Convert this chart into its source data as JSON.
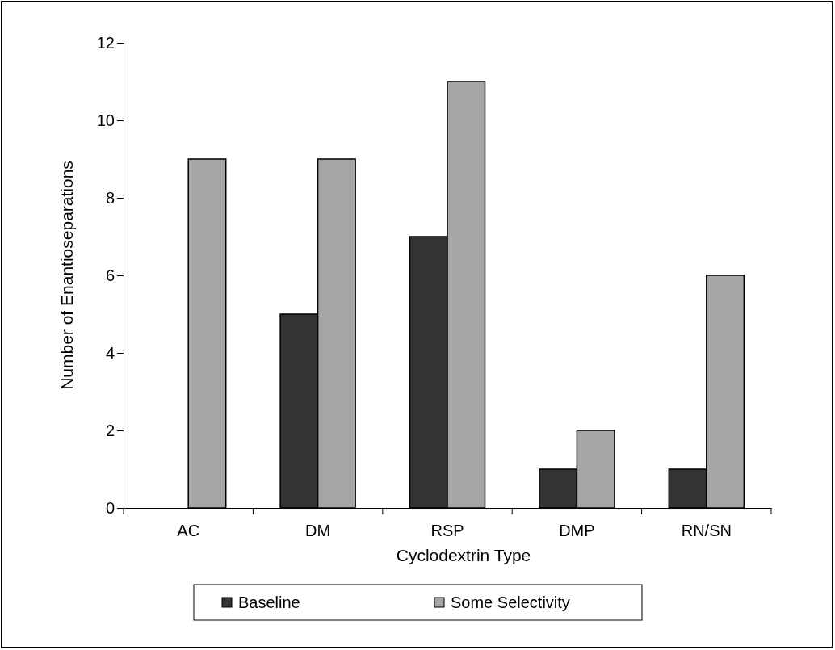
{
  "chart_data": {
    "type": "bar",
    "xlabel": "Cyclodextrin Type",
    "ylabel": "Number of Enantioseparations",
    "categories": [
      "AC",
      "DM",
      "RSP",
      "DMP",
      "RN/SN"
    ],
    "series": [
      {
        "name": "Baseline",
        "color": "#333333",
        "values": [
          0,
          5,
          7,
          1,
          1
        ]
      },
      {
        "name": "Some Selectivity",
        "color": "#a6a6a6",
        "values": [
          9,
          9,
          11,
          2,
          6
        ]
      }
    ],
    "ylim": [
      0,
      12
    ],
    "yticks": [
      0,
      2,
      4,
      6,
      8,
      10,
      12
    ],
    "grid": false,
    "legend": "bottom"
  }
}
